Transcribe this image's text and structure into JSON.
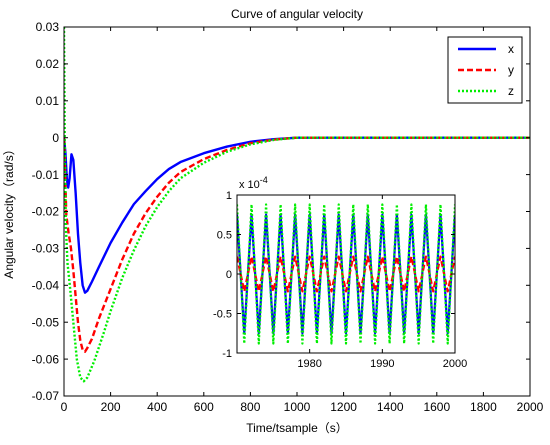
{
  "chart_data": [
    {
      "type": "line",
      "title": "Curve of angular velocity",
      "xlabel": "Time/tsample（s）",
      "ylabel": "Angular velocity（rad/s）",
      "xlim": [
        0,
        2000
      ],
      "ylim": [
        -0.07,
        0.03
      ],
      "xticks": [
        0,
        200,
        400,
        600,
        800,
        1000,
        1200,
        1400,
        1600,
        1800,
        2000
      ],
      "xtick_labels": [
        "0",
        "200",
        "400",
        "600",
        "800",
        "1000",
        "1200",
        "1400",
        "1600",
        "1800",
        "2000"
      ],
      "yticks": [
        -0.07,
        -0.06,
        -0.05,
        -0.04,
        -0.03,
        -0.02,
        -0.01,
        0,
        0.01,
        0.02,
        0.03
      ],
      "ytick_labels": [
        "-0.07",
        "-0.06",
        "-0.05",
        "-0.04",
        "-0.03",
        "-0.02",
        "-0.01",
        "0",
        "0.01",
        "0.02",
        "0.03"
      ],
      "grid": false,
      "legend_position": "top-right",
      "series": [
        {
          "name": "x",
          "color": "#0000ff",
          "style": "solid",
          "points": [
            [
              0,
              0
            ],
            [
              6,
              -0.004
            ],
            [
              12,
              -0.011
            ],
            [
              18,
              -0.0135
            ],
            [
              24,
              -0.011
            ],
            [
              32,
              -0.0045
            ],
            [
              40,
              -0.006
            ],
            [
              50,
              -0.015
            ],
            [
              60,
              -0.026
            ],
            [
              70,
              -0.034
            ],
            [
              80,
              -0.04
            ],
            [
              90,
              -0.042
            ],
            [
              100,
              -0.0415
            ],
            [
              120,
              -0.039
            ],
            [
              150,
              -0.035
            ],
            [
              200,
              -0.0285
            ],
            [
              250,
              -0.023
            ],
            [
              300,
              -0.018
            ],
            [
              350,
              -0.0145
            ],
            [
              400,
              -0.0112
            ],
            [
              450,
              -0.0085
            ],
            [
              500,
              -0.0066
            ],
            [
              600,
              -0.0042
            ],
            [
              700,
              -0.0024
            ],
            [
              800,
              -0.0011
            ],
            [
              900,
              -0.0004
            ],
            [
              1000,
              0
            ],
            [
              1100,
              0
            ],
            [
              2000,
              0
            ]
          ]
        },
        {
          "name": "y",
          "color": "#ff0000",
          "style": "dashed",
          "points": [
            [
              0,
              0
            ],
            [
              10,
              -0.021
            ],
            [
              20,
              -0.026
            ],
            [
              30,
              -0.03
            ],
            [
              40,
              -0.036
            ],
            [
              50,
              -0.043
            ],
            [
              60,
              -0.05
            ],
            [
              70,
              -0.055
            ],
            [
              80,
              -0.0575
            ],
            [
              90,
              -0.058
            ],
            [
              100,
              -0.057
            ],
            [
              120,
              -0.0545
            ],
            [
              150,
              -0.049
            ],
            [
              200,
              -0.041
            ],
            [
              250,
              -0.033
            ],
            [
              300,
              -0.026
            ],
            [
              350,
              -0.0205
            ],
            [
              400,
              -0.016
            ],
            [
              450,
              -0.0122
            ],
            [
              500,
              -0.0093
            ],
            [
              600,
              -0.0058
            ],
            [
              700,
              -0.0033
            ],
            [
              800,
              -0.0015
            ],
            [
              900,
              -0.0005
            ],
            [
              1000,
              0
            ],
            [
              1100,
              0
            ],
            [
              2000,
              0
            ]
          ]
        },
        {
          "name": "z",
          "color": "#00ee00",
          "style": "dotted",
          "points": [
            [
              0,
              0.03
            ],
            [
              3,
              0.0
            ],
            [
              8,
              -0.024
            ],
            [
              15,
              -0.034
            ],
            [
              25,
              -0.04
            ],
            [
              40,
              -0.05
            ],
            [
              55,
              -0.06
            ],
            [
              70,
              -0.065
            ],
            [
              85,
              -0.066
            ],
            [
              100,
              -0.065
            ],
            [
              130,
              -0.0605
            ],
            [
              170,
              -0.053
            ],
            [
              200,
              -0.047
            ],
            [
              250,
              -0.038
            ],
            [
              300,
              -0.0305
            ],
            [
              350,
              -0.024
            ],
            [
              400,
              -0.0188
            ],
            [
              450,
              -0.0145
            ],
            [
              500,
              -0.011
            ],
            [
              600,
              -0.0068
            ],
            [
              700,
              -0.0038
            ],
            [
              800,
              -0.0018
            ],
            [
              900,
              -0.0006
            ],
            [
              1000,
              0
            ],
            [
              1100,
              0
            ],
            [
              2000,
              0
            ]
          ]
        }
      ]
    },
    {
      "type": "line",
      "title": "",
      "xlabel": "",
      "ylabel": "",
      "scale_label": "x 10^-4",
      "xlim": [
        1970,
        2000
      ],
      "ylim": [
        -1,
        1
      ],
      "xticks": [
        1980,
        1990,
        2000
      ],
      "xtick_labels": [
        "1980",
        "1990",
        "2000"
      ],
      "yticks": [
        -1,
        -0.5,
        0,
        0.5,
        1
      ],
      "ytick_labels": [
        "-1",
        "-0.5",
        "0",
        "0.5",
        "1"
      ],
      "grid": false,
      "series": [
        {
          "name": "x",
          "color": "#0000ff",
          "style": "solid",
          "x": [
            1970,
            1971,
            1972,
            1973,
            1974,
            1975,
            1976,
            1977,
            1978,
            1979,
            1980,
            1981,
            1982,
            1983,
            1984,
            1985,
            1986,
            1987,
            1988,
            1989,
            1990,
            1991,
            1992,
            1993,
            1994,
            1995,
            1996,
            1997,
            1998,
            1999,
            2000
          ],
          "values": [
            0.75,
            -0.75,
            0.75,
            -0.75,
            0.75,
            -0.75,
            0.75,
            -0.75,
            0.75,
            -0.75,
            0.75,
            -0.75,
            0.75,
            -0.75,
            0.75,
            -0.75,
            0.75,
            -0.75,
            0.75,
            -0.75,
            0.75,
            -0.75,
            0.75,
            -0.75,
            0.75,
            -0.75,
            0.75,
            -0.75,
            0.75,
            -0.75,
            0.75
          ]
        },
        {
          "name": "y",
          "color": "#ff0000",
          "style": "dashed",
          "x": [
            1970,
            1971,
            1972,
            1973,
            1974,
            1975,
            1976,
            1977,
            1978,
            1979,
            1980,
            1981,
            1982,
            1983,
            1984,
            1985,
            1986,
            1987,
            1988,
            1989,
            1990,
            1991,
            1992,
            1993,
            1994,
            1995,
            1996,
            1997,
            1998,
            1999,
            2000
          ],
          "values": [
            0.22,
            -0.22,
            0.22,
            -0.22,
            0.22,
            -0.22,
            0.22,
            -0.22,
            0.22,
            -0.22,
            0.22,
            -0.22,
            0.22,
            -0.22,
            0.22,
            -0.22,
            0.22,
            -0.22,
            0.22,
            -0.22,
            0.22,
            -0.22,
            0.22,
            -0.22,
            0.22,
            -0.22,
            0.22,
            -0.22,
            0.22,
            -0.22,
            0.22
          ]
        },
        {
          "name": "z",
          "color": "#00ee00",
          "style": "dotted",
          "x": [
            1970,
            1971,
            1972,
            1973,
            1974,
            1975,
            1976,
            1977,
            1978,
            1979,
            1980,
            1981,
            1982,
            1983,
            1984,
            1985,
            1986,
            1987,
            1988,
            1989,
            1990,
            1991,
            1992,
            1993,
            1994,
            1995,
            1996,
            1997,
            1998,
            1999,
            2000
          ],
          "values": [
            0.88,
            -0.88,
            0.88,
            -0.88,
            0.88,
            -0.88,
            0.88,
            -0.88,
            0.88,
            -0.88,
            0.88,
            -0.88,
            0.88,
            -0.88,
            0.88,
            -0.88,
            0.88,
            -0.88,
            0.88,
            -0.88,
            0.88,
            -0.88,
            0.88,
            -0.88,
            0.88,
            -0.88,
            0.88,
            -0.88,
            0.88,
            -0.88,
            0.88
          ]
        }
      ]
    }
  ]
}
